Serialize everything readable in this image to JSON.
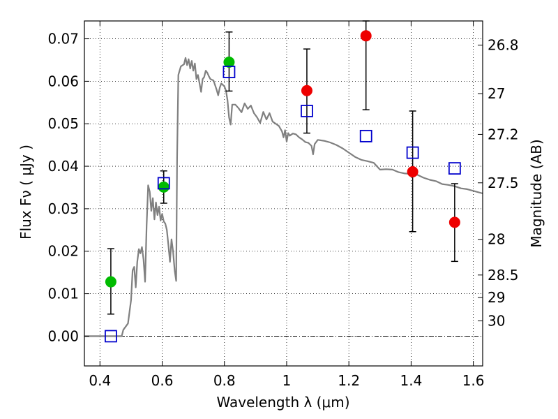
{
  "chart_data": {
    "type": "scatter",
    "title": "",
    "xlabel": "Wavelength  λ (μm)",
    "ylabel": "Flux  Fν  ( μJy )",
    "y2label": "Magnitude (AB)",
    "xlim": [
      0.35,
      1.63
    ],
    "ylim": [
      -0.007,
      0.0742
    ],
    "grid": true,
    "xticks": [
      {
        "value": 0.4,
        "label": "0.4"
      },
      {
        "value": 0.6,
        "label": "0.6"
      },
      {
        "value": 0.8,
        "label": "0.8"
      },
      {
        "value": 1.0,
        "label": "1"
      },
      {
        "value": 1.2,
        "label": "1.2"
      },
      {
        "value": 1.4,
        "label": "1.4"
      },
      {
        "value": 1.6,
        "label": "1.6"
      }
    ],
    "yticks": [
      {
        "value": 0.0,
        "label": "0.00"
      },
      {
        "value": 0.01,
        "label": "0.01"
      },
      {
        "value": 0.02,
        "label": "0.02"
      },
      {
        "value": 0.03,
        "label": "0.03"
      },
      {
        "value": 0.04,
        "label": "0.04"
      },
      {
        "value": 0.05,
        "label": "0.05"
      },
      {
        "value": 0.06,
        "label": "0.06"
      },
      {
        "value": 0.07,
        "label": "0.07"
      }
    ],
    "y2ticks": [
      {
        "label": "26.8",
        "flux": 0.0685
      },
      {
        "label": "27",
        "flux": 0.0571
      },
      {
        "label": "27.2",
        "flux": 0.0475
      },
      {
        "label": "27.5",
        "flux": 0.0361
      },
      {
        "label": "28",
        "flux": 0.0228
      },
      {
        "label": "28.5",
        "flux": 0.0144
      },
      {
        "label": "29",
        "flux": 0.0091
      },
      {
        "label": "30",
        "flux": 0.0036
      }
    ],
    "series": [
      {
        "kind": "line",
        "color": "#808080",
        "points": [
          [
            0.35,
            0.0
          ],
          [
            0.47,
            0.0
          ],
          [
            0.475,
            0.0015
          ],
          [
            0.49,
            0.003
          ],
          [
            0.5,
            0.0085
          ],
          [
            0.505,
            0.0155
          ],
          [
            0.51,
            0.0163
          ],
          [
            0.515,
            0.0115
          ],
          [
            0.52,
            0.0175
          ],
          [
            0.525,
            0.0205
          ],
          [
            0.53,
            0.0195
          ],
          [
            0.535,
            0.021
          ],
          [
            0.54,
            0.018
          ],
          [
            0.545,
            0.0128
          ],
          [
            0.55,
            0.026
          ],
          [
            0.555,
            0.0355
          ],
          [
            0.56,
            0.034
          ],
          [
            0.565,
            0.0295
          ],
          [
            0.57,
            0.0325
          ],
          [
            0.575,
            0.0275
          ],
          [
            0.58,
            0.0315
          ],
          [
            0.585,
            0.0285
          ],
          [
            0.59,
            0.0305
          ],
          [
            0.595,
            0.0272
          ],
          [
            0.6,
            0.0288
          ],
          [
            0.605,
            0.027
          ],
          [
            0.61,
            0.0265
          ],
          [
            0.615,
            0.025
          ],
          [
            0.62,
            0.0215
          ],
          [
            0.625,
            0.0175
          ],
          [
            0.63,
            0.0228
          ],
          [
            0.635,
            0.02
          ],
          [
            0.64,
            0.0155
          ],
          [
            0.645,
            0.013
          ],
          [
            0.648,
            0.042
          ],
          [
            0.652,
            0.0615
          ],
          [
            0.66,
            0.0635
          ],
          [
            0.67,
            0.064
          ],
          [
            0.675,
            0.0655
          ],
          [
            0.68,
            0.0638
          ],
          [
            0.685,
            0.0652
          ],
          [
            0.69,
            0.063
          ],
          [
            0.695,
            0.0648
          ],
          [
            0.7,
            0.0625
          ],
          [
            0.705,
            0.0642
          ],
          [
            0.71,
            0.0605
          ],
          [
            0.715,
            0.0615
          ],
          [
            0.72,
            0.0595
          ],
          [
            0.725,
            0.0575
          ],
          [
            0.73,
            0.0605
          ],
          [
            0.735,
            0.061
          ],
          [
            0.74,
            0.0625
          ],
          [
            0.745,
            0.062
          ],
          [
            0.75,
            0.0612
          ],
          [
            0.755,
            0.0605
          ],
          [
            0.765,
            0.0602
          ],
          [
            0.775,
            0.058
          ],
          [
            0.78,
            0.0567
          ],
          [
            0.785,
            0.0585
          ],
          [
            0.79,
            0.0595
          ],
          [
            0.8,
            0.0588
          ],
          [
            0.805,
            0.0578
          ],
          [
            0.81,
            0.0555
          ],
          [
            0.815,
            0.0515
          ],
          [
            0.82,
            0.0498
          ],
          [
            0.825,
            0.0545
          ],
          [
            0.835,
            0.0545
          ],
          [
            0.845,
            0.0537
          ],
          [
            0.855,
            0.0527
          ],
          [
            0.865,
            0.0548
          ],
          [
            0.875,
            0.0535
          ],
          [
            0.885,
            0.0543
          ],
          [
            0.895,
            0.0525
          ],
          [
            0.905,
            0.0515
          ],
          [
            0.915,
            0.0502
          ],
          [
            0.925,
            0.0528
          ],
          [
            0.935,
            0.051
          ],
          [
            0.945,
            0.0525
          ],
          [
            0.955,
            0.0505
          ],
          [
            0.965,
            0.05
          ],
          [
            0.975,
            0.0495
          ],
          [
            0.985,
            0.0482
          ],
          [
            0.99,
            0.0468
          ],
          [
            0.995,
            0.0485
          ],
          [
            1.0,
            0.0458
          ],
          [
            1.005,
            0.0478
          ],
          [
            1.01,
            0.0472
          ],
          [
            1.02,
            0.0477
          ],
          [
            1.03,
            0.0475
          ],
          [
            1.04,
            0.0468
          ],
          [
            1.05,
            0.0463
          ],
          [
            1.06,
            0.0457
          ],
          [
            1.07,
            0.0455
          ],
          [
            1.08,
            0.0448
          ],
          [
            1.085,
            0.0428
          ],
          [
            1.09,
            0.0452
          ],
          [
            1.1,
            0.0462
          ],
          [
            1.12,
            0.046
          ],
          [
            1.14,
            0.0456
          ],
          [
            1.16,
            0.045
          ],
          [
            1.18,
            0.0442
          ],
          [
            1.2,
            0.0432
          ],
          [
            1.22,
            0.0422
          ],
          [
            1.24,
            0.0415
          ],
          [
            1.26,
            0.0412
          ],
          [
            1.28,
            0.0408
          ],
          [
            1.3,
            0.0392
          ],
          [
            1.32,
            0.0393
          ],
          [
            1.34,
            0.0392
          ],
          [
            1.36,
            0.0386
          ],
          [
            1.38,
            0.0383
          ],
          [
            1.4,
            0.0382
          ],
          [
            1.42,
            0.038
          ],
          [
            1.44,
            0.0373
          ],
          [
            1.46,
            0.0368
          ],
          [
            1.48,
            0.0365
          ],
          [
            1.5,
            0.0358
          ],
          [
            1.52,
            0.0356
          ],
          [
            1.54,
            0.0353
          ],
          [
            1.56,
            0.0348
          ],
          [
            1.58,
            0.0346
          ],
          [
            1.6,
            0.0342
          ],
          [
            1.63,
            0.0336
          ]
        ]
      },
      {
        "kind": "points",
        "marker": "circle",
        "color": "#00bb00",
        "points": [
          {
            "x": 0.435,
            "y": 0.0128,
            "lo": 0.0052,
            "hi": 0.0206
          },
          {
            "x": 0.605,
            "y": 0.0351,
            "lo": 0.0313,
            "hi": 0.0389
          },
          {
            "x": 0.815,
            "y": 0.0645,
            "lo": 0.0577,
            "hi": 0.0716
          }
        ]
      },
      {
        "kind": "points",
        "marker": "circle",
        "color": "#ee0000",
        "points": [
          {
            "x": 1.065,
            "y": 0.0578,
            "lo": 0.0478,
            "hi": 0.0676
          },
          {
            "x": 1.255,
            "y": 0.0707,
            "lo": 0.0533,
            "hi": 0.0742
          },
          {
            "x": 1.405,
            "y": 0.0387,
            "lo": 0.0246,
            "hi": 0.053
          },
          {
            "x": 1.54,
            "y": 0.0268,
            "lo": 0.0176,
            "hi": 0.0359
          }
        ]
      },
      {
        "kind": "points",
        "marker": "square-open",
        "color": "#0000cc",
        "points": [
          {
            "x": 0.435,
            "y": 0.0
          },
          {
            "x": 0.605,
            "y": 0.036
          },
          {
            "x": 0.815,
            "y": 0.0622
          },
          {
            "x": 1.065,
            "y": 0.053
          },
          {
            "x": 1.255,
            "y": 0.0471
          },
          {
            "x": 1.405,
            "y": 0.0432
          },
          {
            "x": 1.54,
            "y": 0.0395
          }
        ]
      }
    ]
  }
}
